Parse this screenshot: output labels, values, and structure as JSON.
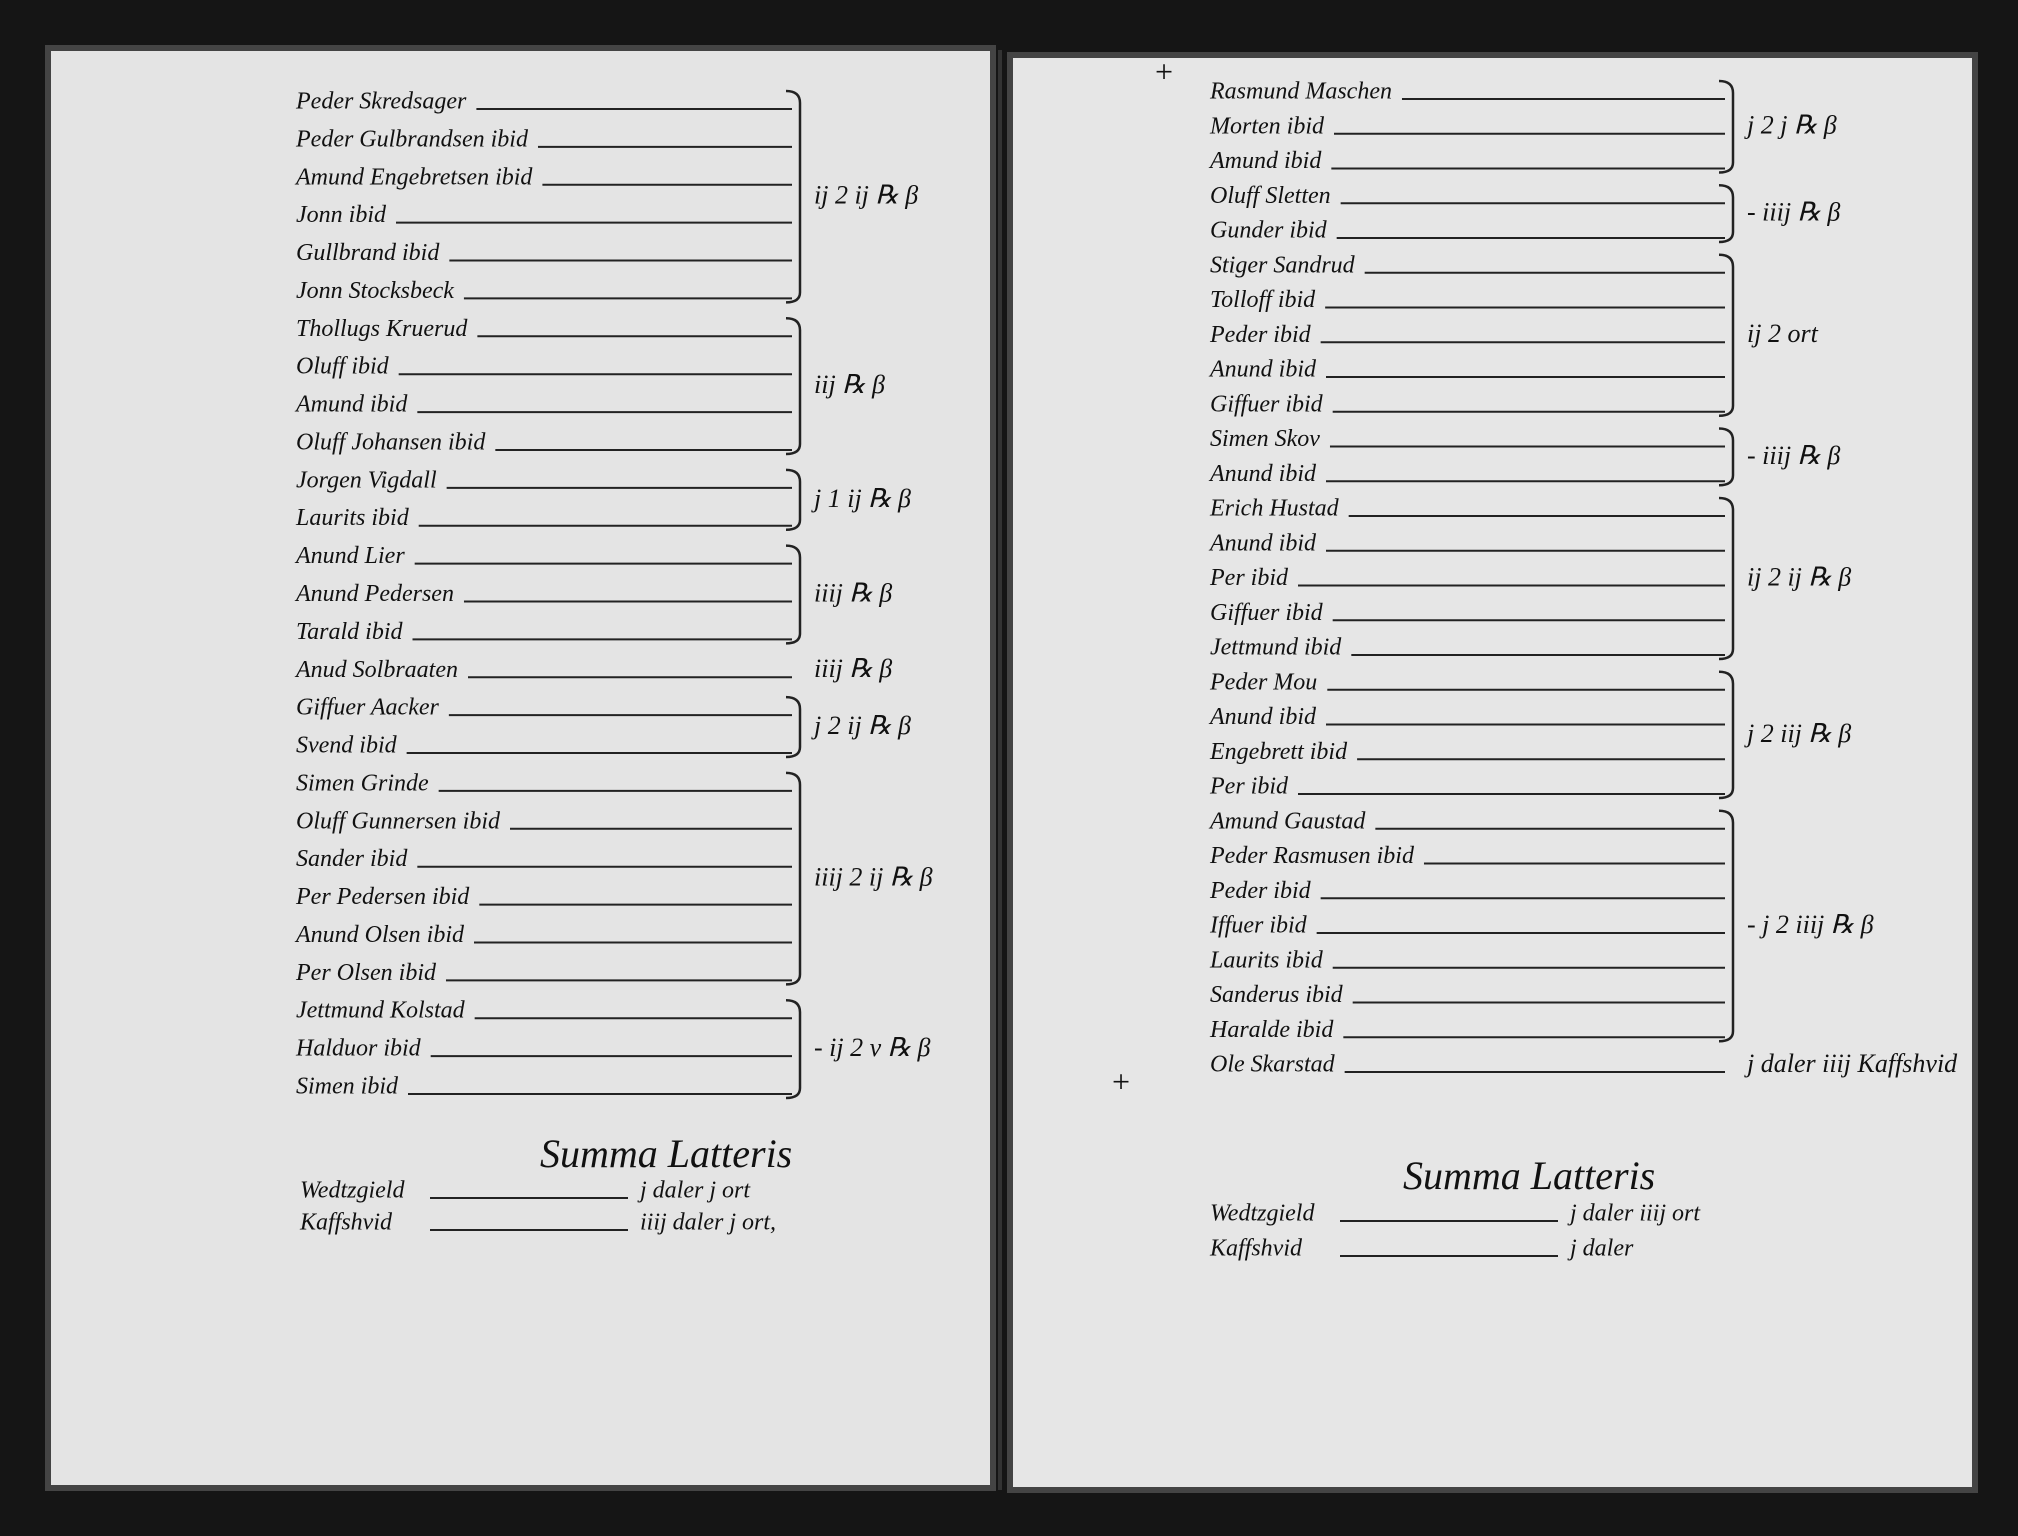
{
  "left_page": {
    "groups": [
      {
        "names": [
          "Peder Skredsager",
          "Peder Gulbrandsen ibid",
          "Amund Engebretsen ibid",
          "Jonn ibid",
          "Gullbrand ibid",
          "Jonn Stocksbeck"
        ],
        "total": "ij 2 ij ℞ β"
      },
      {
        "names": [
          "Thollugs Kruerud",
          "Oluff ibid",
          "Amund ibid",
          "Oluff Johansen ibid"
        ],
        "total": "iij ℞ β"
      },
      {
        "names": [
          "Jorgen Vigdall",
          "Laurits ibid"
        ],
        "total": "j 1 ij ℞ β"
      },
      {
        "names": [
          "Anund Lier",
          "Anund Pedersen",
          "Tarald ibid"
        ],
        "total": "iiij ℞ β"
      },
      {
        "names": [
          "Anud Solbraaten"
        ],
        "total": "iiij ℞ β"
      },
      {
        "names": [
          "Giffuer Aacker",
          "Svend ibid"
        ],
        "total": "j 2 ij ℞ β"
      },
      {
        "names": [
          "Simen Grinde",
          "Oluff Gunnersen ibid",
          "Sander ibid",
          "Per Pedersen ibid",
          "Anund Olsen ibid",
          "Per Olsen ibid"
        ],
        "total": "iiij 2 ij ℞ β"
      },
      {
        "names": [
          "Jettmund Kolstad",
          "Halduor ibid",
          "Simen ibid"
        ],
        "total": "- ij 2 v ℞ β"
      }
    ],
    "summa": {
      "title": "Summa Latteris",
      "lines": [
        {
          "label": "Wedtzgield",
          "value": "j daler j ort"
        },
        {
          "label": "Kaffshvid",
          "value": "iiij daler j ort,"
        }
      ]
    }
  },
  "right_page": {
    "cross_top": "+",
    "cross_bottom": "+",
    "groups": [
      {
        "names": [
          "Rasmund Maschen",
          "Morten ibid",
          "Amund ibid"
        ],
        "total": "j 2 j ℞ β"
      },
      {
        "names": [
          "Oluff Sletten",
          "Gunder ibid"
        ],
        "total": "- iiij ℞ β"
      },
      {
        "names": [
          "Stiger Sandrud",
          "Tolloff ibid",
          "Peder ibid",
          "Anund ibid",
          "Giffuer ibid"
        ],
        "total": "ij 2 ort"
      },
      {
        "names": [
          "Simen Skov",
          "Anund ibid"
        ],
        "total": "- iiij ℞ β"
      },
      {
        "names": [
          "Erich Hustad",
          "Anund ibid",
          "Per ibid",
          "Giffuer ibid",
          "Jettmund ibid"
        ],
        "total": "ij 2 ij ℞ β"
      },
      {
        "names": [
          "Peder Mou",
          "Anund ibid",
          "Engebrett ibid",
          "Per ibid"
        ],
        "total": "j 2 iij ℞ β"
      },
      {
        "names": [
          "Amund Gaustad",
          "Peder Rasmusen ibid",
          "Peder ibid",
          "Iffuer ibid",
          "Laurits ibid",
          "Sanderus ibid",
          "Haralde ibid"
        ],
        "total": "- j 2 iiij ℞ β"
      },
      {
        "names": [
          "Ole Skarstad"
        ],
        "total": "j daler iiij Kaffshvid"
      }
    ],
    "summa": {
      "title": "Summa Latteris",
      "lines": [
        {
          "label": "Wedtzgield",
          "value": "j daler iiij ort"
        },
        {
          "label": "Kaffshvid",
          "value": "j daler"
        }
      ]
    }
  }
}
